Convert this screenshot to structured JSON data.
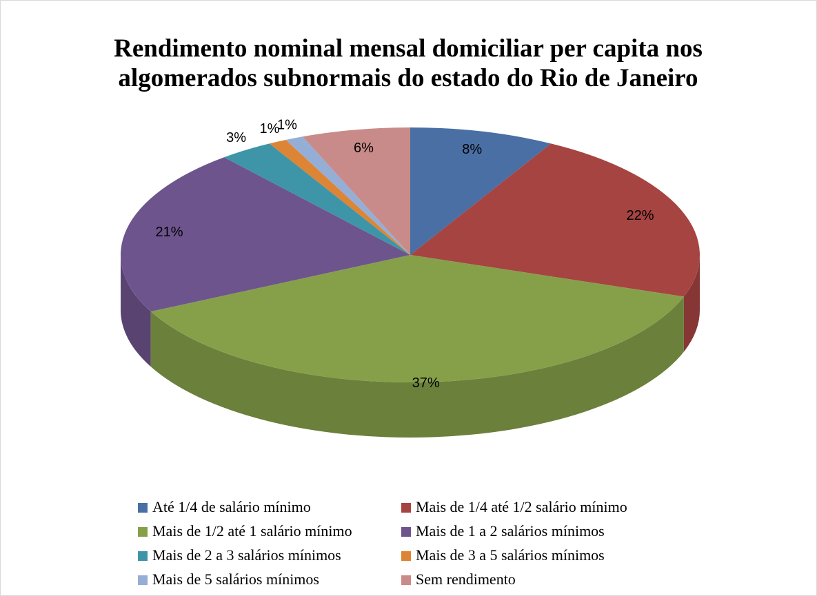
{
  "chart_data": {
    "type": "pie",
    "title": "Rendimento nominal mensal domiciliar per capita nos algomerados subnormais do estado do Rio de Janeiro",
    "categories": [
      "Até 1/4 de salário mínimo",
      "Mais de 1/4 até 1/2 salário mínimo",
      "Mais de 1/2 até 1 salário mínimo",
      "Mais de 1 a 2 salários mínimos",
      "Mais de 2 a 3 salários mínimos",
      "Mais de 3 a 5 salários mínimos",
      "Mais de 5 salários mínimos",
      "Sem rendimento"
    ],
    "values": [
      8,
      22,
      37,
      21,
      3,
      1,
      1,
      6
    ],
    "value_labels": [
      "8%",
      "22%",
      "37%",
      "21%",
      "3%",
      "1%",
      "1%",
      "6%"
    ],
    "colors": [
      "#4a6fa5",
      "#a64442",
      "#86a04a",
      "#6e548d",
      "#3e95a8",
      "#dd8534",
      "#95aed6",
      "#c98b89"
    ]
  }
}
